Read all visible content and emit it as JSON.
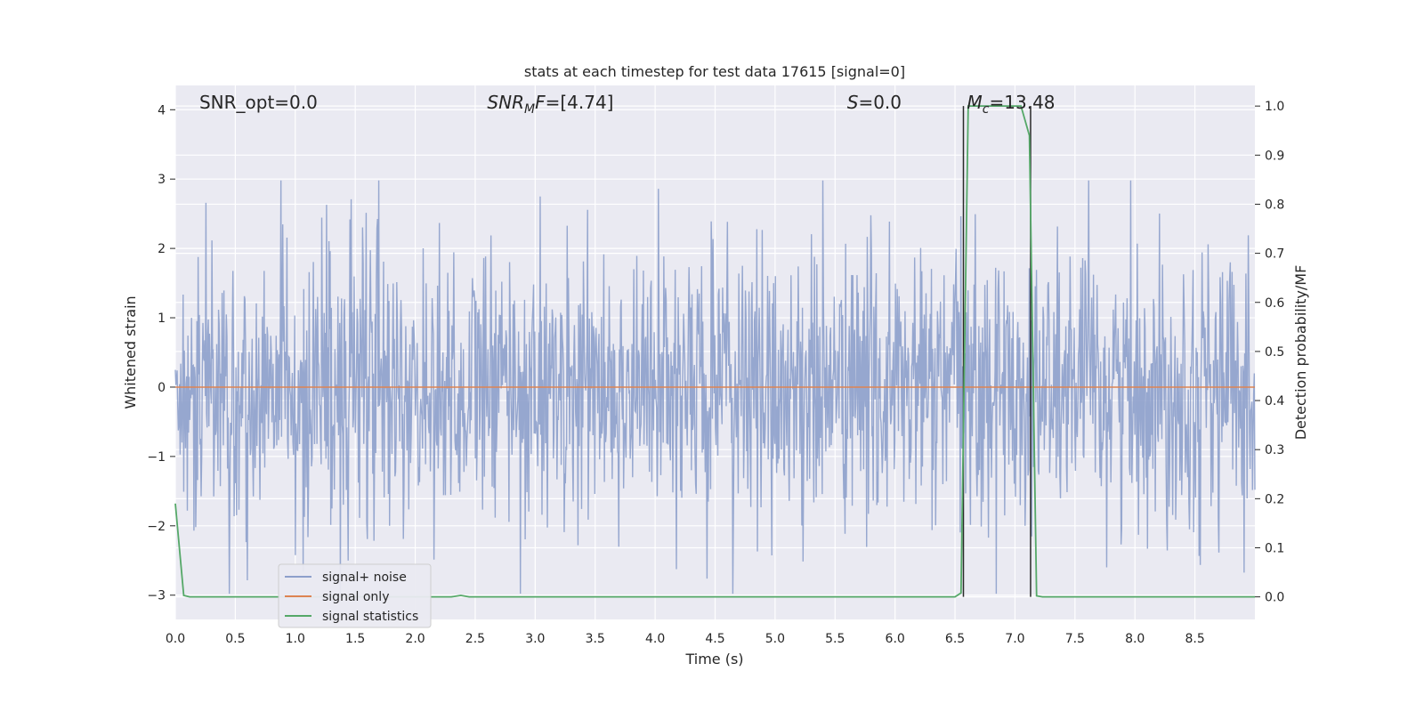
{
  "chart_data": {
    "type": "line",
    "title": "stats at each timestep for test data 17615 [signal=0]",
    "xlabel": "Time (s)",
    "ylabel_left": "Whitened strain",
    "ylabel_right": "Detection probability/MF",
    "xlim": [
      0.0,
      9.0
    ],
    "ylim_left": [
      -3.35,
      4.35
    ],
    "ylim_right": [
      -0.046,
      1.042
    ],
    "x_ticks": [
      "0.0",
      "0.5",
      "1.0",
      "1.5",
      "2.0",
      "2.5",
      "3.0",
      "3.5",
      "4.0",
      "4.5",
      "5.0",
      "5.5",
      "6.0",
      "6.5",
      "7.0",
      "7.5",
      "8.0",
      "8.5"
    ],
    "y_ticks_left": [
      "4",
      "3",
      "2",
      "1",
      "0",
      "−1",
      "−2",
      "−3"
    ],
    "y_ticks_right": [
      "1.0",
      "0.9",
      "0.8",
      "0.7",
      "0.6",
      "0.5",
      "0.4",
      "0.3",
      "0.2",
      "0.1",
      "0.0"
    ],
    "grid": true,
    "legend_position": "lower-left",
    "annotations": [
      {
        "text": "SNR_opt=0.0",
        "x": 0.2
      },
      {
        "text": "SNR_MF=[4.74]",
        "x": 2.6
      },
      {
        "text": "S=0.0",
        "x": 5.6
      },
      {
        "text": "M_c=13.48",
        "x": 6.6
      }
    ],
    "series": [
      {
        "name": "signal+ noise",
        "color": "#8da0cb",
        "axis": "left",
        "description_points": "Gaussian whitened noise, roughly within [-2.9, 3.0]",
        "envelope": {
          "min": -2.98,
          "max": 2.98,
          "sigma": 1.0,
          "num_samples": 1800
        }
      },
      {
        "name": "signal only",
        "color": "#dd8452",
        "axis": "left",
        "x": [
          0.0,
          9.0
        ],
        "y": [
          0.0,
          0.0
        ]
      },
      {
        "name": "signal statistics",
        "color": "#55a868",
        "axis": "right",
        "x": [
          0.0,
          0.07,
          0.12,
          2.3,
          2.38,
          2.45,
          6.5,
          6.55,
          6.61,
          6.66,
          7.05,
          7.12,
          7.18,
          7.23,
          9.0
        ],
        "y": [
          0.19,
          0.003,
          0.0,
          0.0,
          0.003,
          0.0,
          0.0,
          0.008,
          1.0,
          1.0,
          1.0,
          0.94,
          0.002,
          0.0,
          0.0
        ]
      }
    ],
    "vertical_lines": [
      {
        "x": 6.57,
        "y_from": 0.0,
        "y_to": 1.0,
        "color": "#2a2a2a"
      },
      {
        "x": 7.13,
        "y_from": 0.0,
        "y_to": 1.0,
        "color": "#2a2a2a"
      }
    ],
    "legend": [
      "signal+ noise",
      "signal only",
      "signal statistics"
    ]
  }
}
